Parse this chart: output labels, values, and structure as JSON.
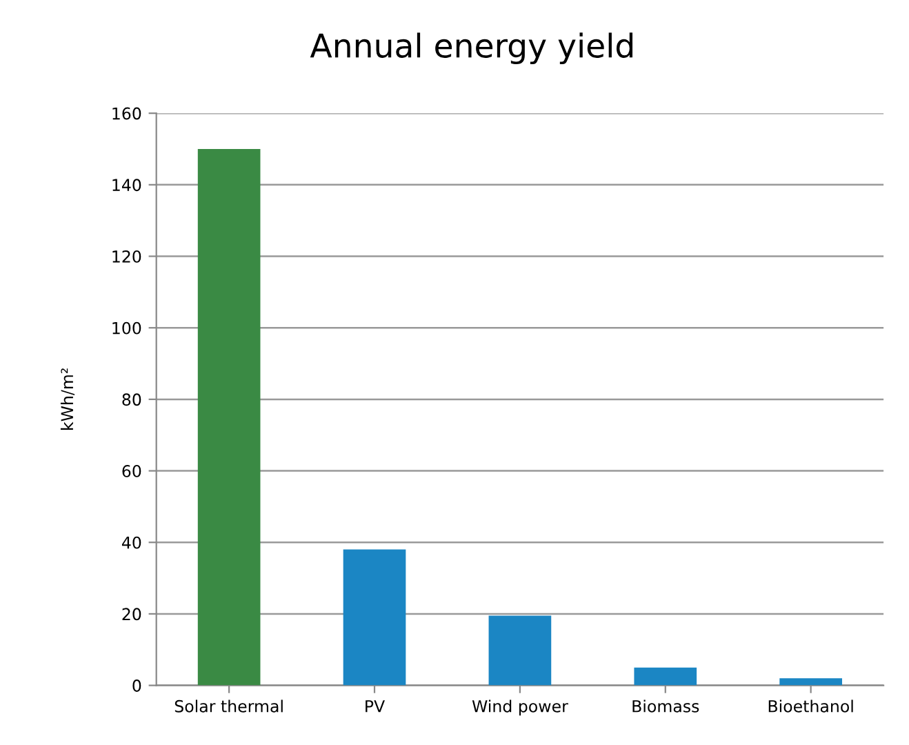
{
  "chart_data": {
    "type": "bar",
    "title": "Annual energy yield",
    "ylabel": "kWh/m²",
    "categories": [
      "Solar thermal",
      "PV",
      "Wind power",
      "Biomass",
      "Bioethanol"
    ],
    "values": [
      150,
      38,
      19.5,
      5,
      2
    ],
    "colors": [
      "#3a8a44",
      "#1b86c4",
      "#1b86c4",
      "#1b86c4",
      "#1b86c4"
    ],
    "ylim": [
      0,
      160
    ],
    "yticks": [
      0,
      20,
      40,
      60,
      80,
      100,
      120,
      140,
      160
    ],
    "grid": "y"
  }
}
